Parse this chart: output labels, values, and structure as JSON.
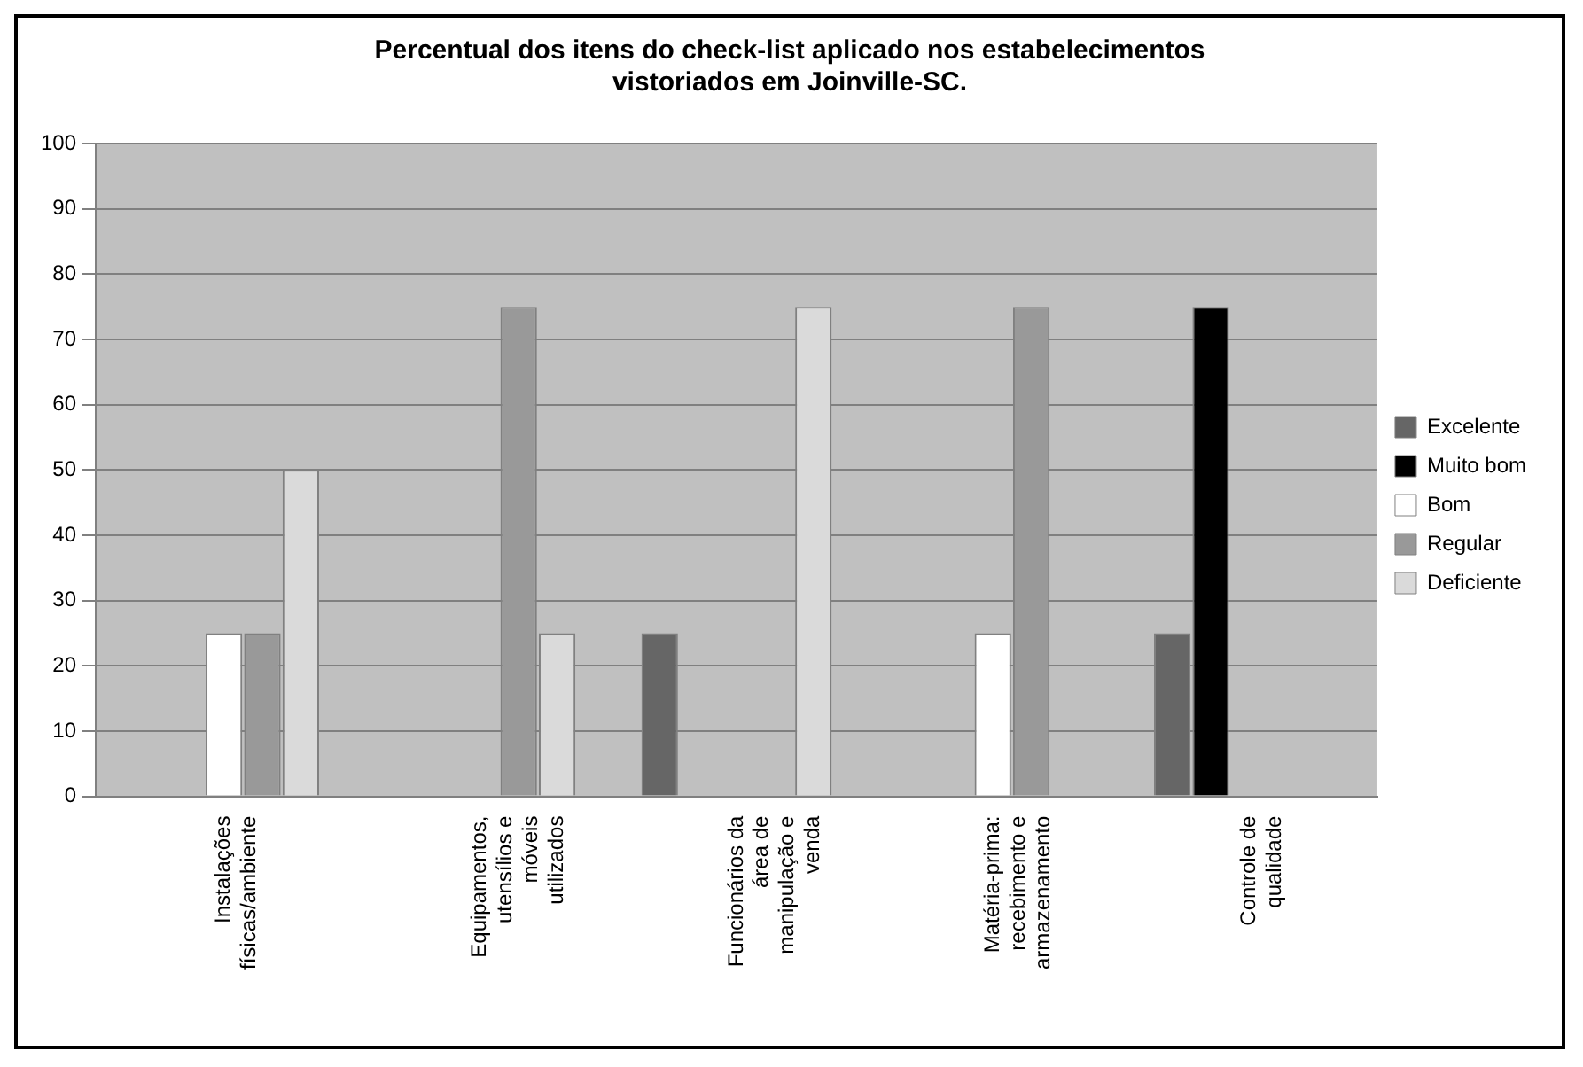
{
  "chart_data": {
    "type": "bar",
    "title": "Percentual dos itens do check-list aplicado nos estabelecimentos vistoriados em Joinville-SC.",
    "categories": [
      "Instalações físicas/ambiente",
      "Equipamentos, utensílios e móveis utilizados",
      "Funcionários da área de manipulação e venda",
      "Matéria-prima: recebimento e armazenamento",
      "Controle de qualidade"
    ],
    "series": [
      {
        "name": "Excelente",
        "color": "#666666",
        "values": [
          0,
          0,
          25,
          0,
          25
        ]
      },
      {
        "name": "Muito bom",
        "color": "#000000",
        "values": [
          0,
          0,
          0,
          0,
          75
        ]
      },
      {
        "name": "Bom",
        "color": "#ffffff",
        "values": [
          25,
          0,
          0,
          25,
          0
        ]
      },
      {
        "name": "Regular",
        "color": "#999999",
        "values": [
          25,
          75,
          0,
          75,
          0
        ]
      },
      {
        "name": "Deficiente",
        "color": "#dadada",
        "values": [
          50,
          25,
          75,
          0,
          0
        ]
      }
    ],
    "ylim": [
      0,
      100
    ],
    "yticks": [
      0,
      10,
      20,
      30,
      40,
      50,
      60,
      70,
      80,
      90,
      100
    ],
    "grid": "y",
    "legend": "right"
  }
}
